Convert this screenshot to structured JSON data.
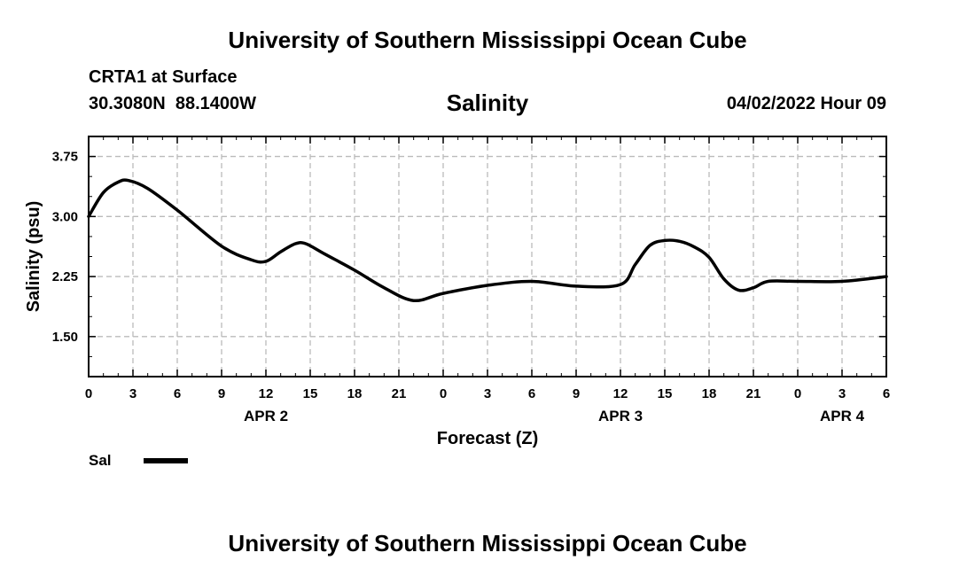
{
  "header": {
    "title": "University of Southern Mississippi Ocean Cube",
    "station": "CRTA1 at Surface",
    "coords": "30.3080N  88.1400W",
    "datetime": "04/02/2022 Hour 09"
  },
  "footer": {
    "title": "University of Southern Mississippi Ocean Cube"
  },
  "chart_data": {
    "type": "line",
    "title": "Salinity",
    "xlabel": "Forecast (Z)",
    "ylabel": "Salinity (psu)",
    "xlim": [
      0,
      54
    ],
    "ylim": [
      1.0,
      4.0
    ],
    "yticks": [
      1.5,
      2.25,
      3.0,
      3.75
    ],
    "ytick_labels": [
      "1.50",
      "2.25",
      "3.00",
      "3.75"
    ],
    "xticks": [
      0,
      3,
      6,
      9,
      12,
      15,
      18,
      21,
      24,
      27,
      30,
      33,
      36,
      39,
      42,
      45,
      48,
      51,
      54
    ],
    "xtick_labels": [
      "0",
      "3",
      "6",
      "9",
      "12",
      "15",
      "18",
      "21",
      "0",
      "3",
      "6",
      "9",
      "12",
      "15",
      "18",
      "21",
      "0",
      "3",
      "6"
    ],
    "date_labels": [
      {
        "text": "APR 2",
        "x": 12
      },
      {
        "text": "APR 3",
        "x": 36
      },
      {
        "text": "APR 4",
        "x": 51
      }
    ],
    "grid": true,
    "series": [
      {
        "name": "Sal",
        "color": "#000000",
        "x": [
          0,
          1,
          2,
          2.7,
          4,
          6,
          9,
          11,
          12,
          13,
          14,
          14.7,
          16,
          18,
          20,
          22,
          24,
          27,
          30,
          33,
          36,
          37,
          38,
          39,
          40,
          41,
          42,
          43,
          44,
          45,
          46,
          48,
          51,
          54
        ],
        "values": [
          3.0,
          3.3,
          3.43,
          3.45,
          3.35,
          3.08,
          2.63,
          2.46,
          2.44,
          2.56,
          2.66,
          2.66,
          2.53,
          2.33,
          2.11,
          1.95,
          2.04,
          2.14,
          2.19,
          2.13,
          2.15,
          2.4,
          2.64,
          2.7,
          2.69,
          2.62,
          2.49,
          2.22,
          2.08,
          2.11,
          2.19,
          2.19,
          2.19,
          2.25
        ]
      }
    ]
  }
}
